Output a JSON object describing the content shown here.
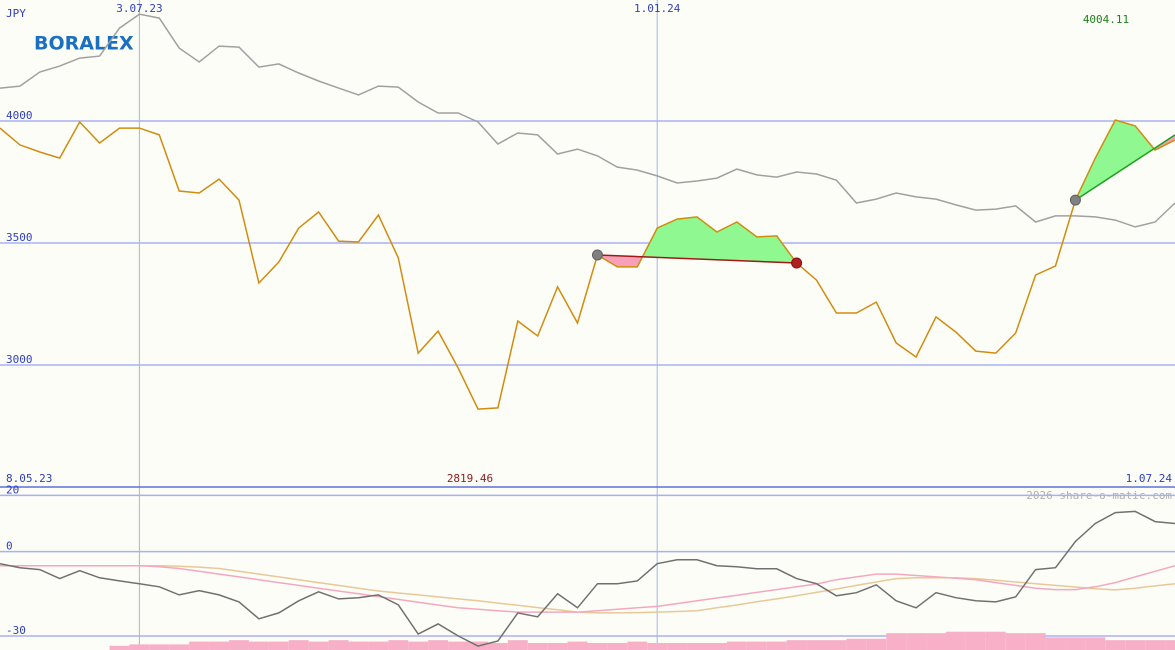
{
  "chart_data": [
    {
      "type": "line",
      "currency": "JPY",
      "logo": "BORALEX",
      "max_label": 4004.11,
      "min_label": 2819.46,
      "watermark": "2026 share-o-matic.com",
      "categories": [
        "8.05.23",
        null,
        null,
        null,
        null,
        null,
        null,
        "3.07.23",
        null,
        null,
        null,
        null,
        null,
        null,
        null,
        null,
        null,
        null,
        null,
        null,
        null,
        null,
        null,
        null,
        null,
        null,
        null,
        null,
        null,
        null,
        null,
        null,
        null,
        "1.01.24",
        null,
        null,
        null,
        null,
        null,
        null,
        null,
        null,
        null,
        null,
        null,
        null,
        null,
        null,
        null,
        null,
        null,
        null,
        null,
        null,
        null,
        null,
        null,
        null,
        null,
        "1.07.24"
      ],
      "ylim": [
        2500,
        4496
      ],
      "yticks": [
        3000,
        3500,
        4000
      ],
      "grid": true,
      "series": [
        {
          "color": "#a0a0a0",
          "values": [
            4135,
            4143,
            4201,
            4225,
            4258,
            4266,
            4381,
            4438,
            4422,
            4299,
            4242,
            4307,
            4303,
            4221,
            4234,
            4197,
            4164,
            4135,
            4107,
            4143,
            4139,
            4078,
            4033,
            4033,
            3996,
            3906,
            3951,
            3943,
            3865,
            3885,
            3857,
            3811,
            3799,
            3775,
            3746,
            3754,
            3766,
            3803,
            3779,
            3770,
            3791,
            3783,
            3758,
            3664,
            3680,
            3705,
            3689,
            3680,
            3656,
            3635,
            3639,
            3652,
            3586,
            3611,
            3611,
            3607,
            3594,
            3566,
            3586,
            3664
          ]
        },
        {
          "color": "#d08c10",
          "values": [
            3971,
            3902,
            3873,
            3848,
            3996,
            3910,
            3971,
            3971,
            3943,
            3713,
            3705,
            3762,
            3676,
            3336,
            3422,
            3561,
            3627,
            3508,
            3504,
            3615,
            3439,
            3049,
            3139,
            2988,
            2819.46,
            2824,
            3180,
            3119,
            3320,
            3172,
            3451,
            3402,
            3402,
            3561,
            3598,
            3607,
            3545,
            3586,
            3525,
            3529,
            3418,
            3348,
            3213,
            3213,
            3258,
            3090,
            3033,
            3197,
            3135,
            3057,
            3049,
            3131,
            3369,
            3406,
            3676,
            3848,
            4004.11,
            3980,
            3881,
            3922
          ]
        }
      ],
      "trades": [
        {
          "x": [
            30,
            40
          ],
          "values": [
            3451,
            3418
          ],
          "color": "#a01818"
        },
        {
          "x": [
            54,
            59
          ],
          "values": [
            3676,
            3943
          ],
          "color": "#20a020"
        }
      ]
    },
    {
      "type": "line",
      "ylim": [
        -35,
        23
      ],
      "yticks": [
        20,
        0,
        -30
      ],
      "grid": true,
      "series": [
        {
          "type": "bar",
          "color": "#f8b0c8",
          "values": [
            null,
            null,
            null,
            null,
            null,
            null,
            -33.5,
            -33,
            -33,
            -33,
            -32,
            -32,
            -31.5,
            -32,
            -32,
            -31.5,
            -32,
            -31.5,
            -32,
            -32,
            -31.5,
            -32,
            -31.5,
            -32,
            -32,
            -32.5,
            -31.5,
            -32.5,
            -32.5,
            -32,
            -32.5,
            -32.5,
            -32,
            -32.5,
            -32.5,
            -32.5,
            -32.5,
            -32,
            -32,
            -32,
            -31.5,
            -31.5,
            -31.5,
            -31,
            -31,
            -29,
            -29,
            -29,
            -28.5,
            -28.5,
            -28.5,
            -29,
            -29,
            -30.5,
            -30.5,
            -30.5,
            -31.5,
            -31.5,
            -31.5,
            -31.5
          ]
        },
        {
          "color": "#e8c898",
          "values": [
            -5,
            -5,
            -5,
            -5,
            -5,
            -5,
            -5,
            -5,
            -5,
            -5.2,
            -5.5,
            -6,
            -7,
            -8,
            -9,
            -10,
            -11,
            -12,
            -13,
            -14,
            -14.7,
            -15.4,
            -16.1,
            -16.8,
            -17.5,
            -18.3,
            -19.1,
            -19.9,
            -20.7,
            -21.5,
            -21.8,
            -21.8,
            -21.7,
            -21.5,
            -21.3,
            -21,
            -20,
            -19,
            -17.8,
            -16.8,
            -15.7,
            -14.5,
            -13.3,
            -12,
            -10.8,
            -9.6,
            -9.3,
            -9.3,
            -9.3,
            -9.6,
            -10.2,
            -10.8,
            -11.4,
            -12,
            -12.6,
            -13.2,
            -13.6,
            -13,
            -12.2,
            -11.4
          ]
        },
        {
          "color": "#f4a8c0",
          "values": [
            -5,
            -5,
            -5,
            -5,
            -5,
            -5,
            -5,
            -5,
            -5.4,
            -6,
            -7,
            -8,
            -9,
            -10,
            -11,
            -12,
            -13,
            -14,
            -15,
            -16,
            -17,
            -18,
            -19,
            -20,
            -20.5,
            -21,
            -21.5,
            -21.5,
            -21.5,
            -21.5,
            -21,
            -20.5,
            -20,
            -19.5,
            -18.5,
            -17.5,
            -16.5,
            -15.5,
            -14.5,
            -13.5,
            -12.5,
            -11.5,
            -10,
            -9,
            -8,
            -8,
            -8.5,
            -9,
            -9.5,
            -10,
            -11,
            -12,
            -13,
            -13.5,
            -13.5,
            -12.5,
            -11,
            -9,
            -7,
            -5
          ]
        },
        {
          "color": "#707070",
          "values": [
            -4.3,
            -5.7,
            -6.4,
            -9.6,
            -6.8,
            -9.3,
            -10.4,
            -11.4,
            -12.5,
            -15.4,
            -13.9,
            -15.4,
            -17.9,
            -23.9,
            -21.8,
            -17.5,
            -14.3,
            -16.8,
            -16.4,
            -15.4,
            -18.9,
            -29.3,
            -25.7,
            -30,
            -33.6,
            -31.8,
            -21.8,
            -23.2,
            -15,
            -20,
            -11.4,
            -11.4,
            -10.4,
            -4.3,
            -2.9,
            -2.9,
            -5,
            -5.4,
            -6.1,
            -6.1,
            -9.6,
            -11.4,
            -15.7,
            -14.6,
            -11.8,
            -17.5,
            -20,
            -14.6,
            -16.4,
            -17.5,
            -17.9,
            -16.1,
            -6.4,
            -5.7,
            3.6,
            10,
            13.9,
            14.3,
            10.7,
            10
          ]
        }
      ]
    }
  ]
}
